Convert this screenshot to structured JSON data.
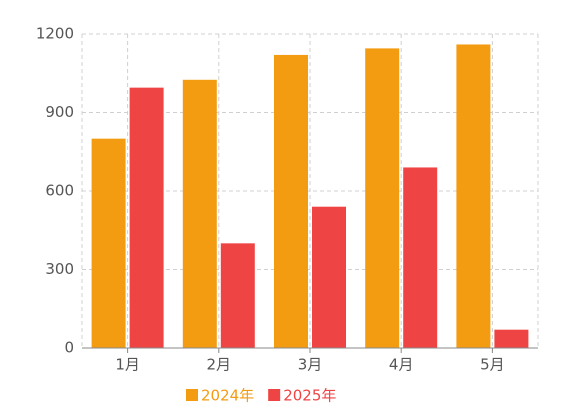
{
  "chart_data": {
    "type": "bar",
    "categories": [
      "1月",
      "2月",
      "3月",
      "4月",
      "5月"
    ],
    "series": [
      {
        "name": "2024年",
        "color": "#f39c12",
        "values": [
          800,
          1025,
          1120,
          1145,
          1160
        ]
      },
      {
        "name": "2025年",
        "color": "#ef4444",
        "values": [
          995,
          400,
          540,
          690,
          70
        ]
      }
    ],
    "ylim": [
      0,
      1200
    ],
    "yticks": [
      0,
      300,
      600,
      900,
      1200
    ],
    "grid": true,
    "legend": "bottom"
  }
}
